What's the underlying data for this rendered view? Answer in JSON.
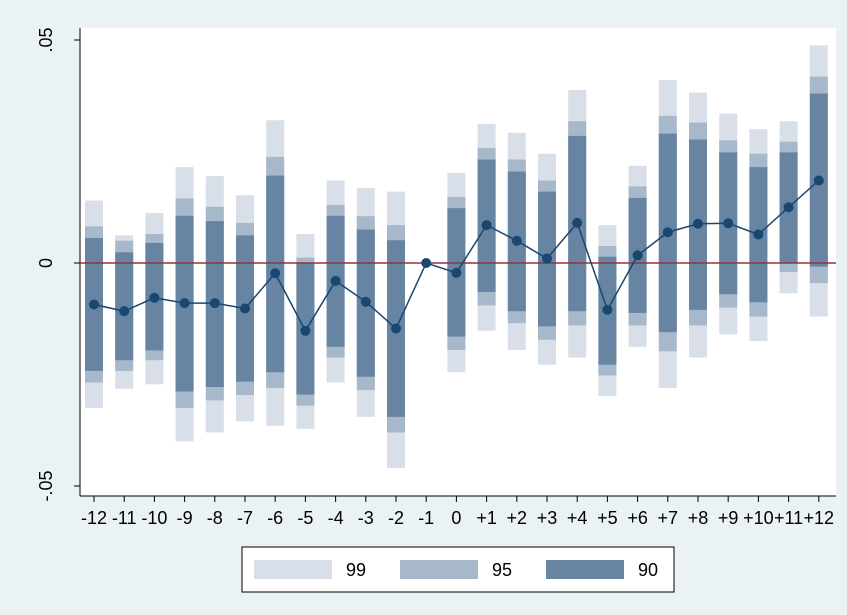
{
  "chart_data": {
    "type": "line",
    "subtype": "event-study coefficient plot with confidence interval bars",
    "categories": [
      "-12",
      "-11",
      "-10",
      "-9",
      "-8",
      "-7",
      "-6",
      "-5",
      "-4",
      "-3",
      "-2",
      "-1",
      "0",
      "+1",
      "+2",
      "+3",
      "+4",
      "+5",
      "+6",
      "+7",
      "+8",
      "+9",
      "+10",
      "+11",
      "+12"
    ],
    "series": [
      {
        "values": [
          -0.0093,
          -0.0108,
          -0.0078,
          -0.009,
          -0.009,
          -0.0102,
          -0.0023,
          -0.0152,
          -0.004,
          -0.0087,
          -0.0147,
          0.0,
          -0.0022,
          0.0085,
          0.005,
          0.001,
          0.009,
          -0.0105,
          0.0017,
          0.0069,
          0.0088,
          0.0089,
          0.0064,
          0.0125,
          0.0185
        ]
      }
    ],
    "intervals": {
      "90": {
        "lo": [
          -0.0242,
          -0.0218,
          -0.0196,
          -0.0288,
          -0.0278,
          -0.0266,
          -0.0245,
          -0.0295,
          -0.0188,
          -0.0255,
          -0.0345,
          0.0,
          -0.0165,
          -0.0065,
          -0.0108,
          -0.0142,
          -0.0108,
          -0.0228,
          -0.0112,
          -0.0155,
          -0.0105,
          -0.007,
          -0.0088,
          0.0,
          -0.0008
        ],
        "hi": [
          0.0056,
          0.0024,
          0.0045,
          0.0106,
          0.0094,
          0.0062,
          0.0196,
          0.0,
          0.0106,
          0.0075,
          0.0051,
          0.0,
          0.0123,
          0.0232,
          0.0205,
          0.016,
          0.0285,
          0.0014,
          0.0146,
          0.029,
          0.0277,
          0.0248,
          0.0215,
          0.0248,
          0.038
        ]
      },
      "95": {
        "lo": [
          -0.0268,
          -0.0242,
          -0.0218,
          -0.0325,
          -0.0308,
          -0.0296,
          -0.028,
          -0.032,
          -0.0212,
          -0.0285,
          -0.038,
          0.0,
          -0.0195,
          -0.0095,
          -0.0135,
          -0.0172,
          -0.014,
          -0.0252,
          -0.014,
          -0.0198,
          -0.014,
          -0.01,
          -0.012,
          -0.002,
          -0.0045
        ],
        "hi": [
          0.0082,
          0.005,
          0.0065,
          0.0145,
          0.0126,
          0.009,
          0.0238,
          0.0012,
          0.013,
          0.0105,
          0.0085,
          0.0,
          0.0148,
          0.0258,
          0.0232,
          0.0185,
          0.0318,
          0.0038,
          0.0172,
          0.033,
          0.0315,
          0.0275,
          0.0245,
          0.0272,
          0.0418
        ]
      },
      "99": {
        "lo": [
          -0.0325,
          -0.0282,
          -0.0272,
          -0.04,
          -0.038,
          -0.0355,
          -0.0365,
          -0.0372,
          -0.0268,
          -0.0345,
          -0.046,
          0.0,
          -0.0245,
          -0.0152,
          -0.0195,
          -0.0228,
          -0.0212,
          -0.0298,
          -0.0188,
          -0.028,
          -0.0212,
          -0.016,
          -0.0175,
          -0.0068,
          -0.012
        ],
        "hi": [
          0.014,
          0.0062,
          0.0112,
          0.0215,
          0.0195,
          0.0152,
          0.032,
          0.0065,
          0.0185,
          0.0168,
          0.016,
          0.0,
          0.0202,
          0.0312,
          0.0292,
          0.0245,
          0.0388,
          0.0085,
          0.0218,
          0.041,
          0.0382,
          0.0335,
          0.03,
          0.0318,
          0.0488
        ]
      }
    },
    "ylim": [
      -0.05,
      0.05
    ],
    "yticks": [
      {
        "value": 0.05,
        "label": ".05"
      },
      {
        "value": 0,
        "label": "0"
      },
      {
        "value": -0.05,
        "label": "-.05"
      }
    ],
    "reference_line": {
      "value": 0
    },
    "legend": {
      "position": "bottom",
      "entries": [
        "99",
        "95",
        "90"
      ]
    },
    "grid": false
  },
  "colors": {
    "background": "#eaf2f3",
    "plot_background": "#ffffff",
    "ci99": "#d9dfe8",
    "ci95": "#a7b8cb",
    "ci90": "#6784a3",
    "line": "#1a476f",
    "zero_line": "#90353b"
  }
}
